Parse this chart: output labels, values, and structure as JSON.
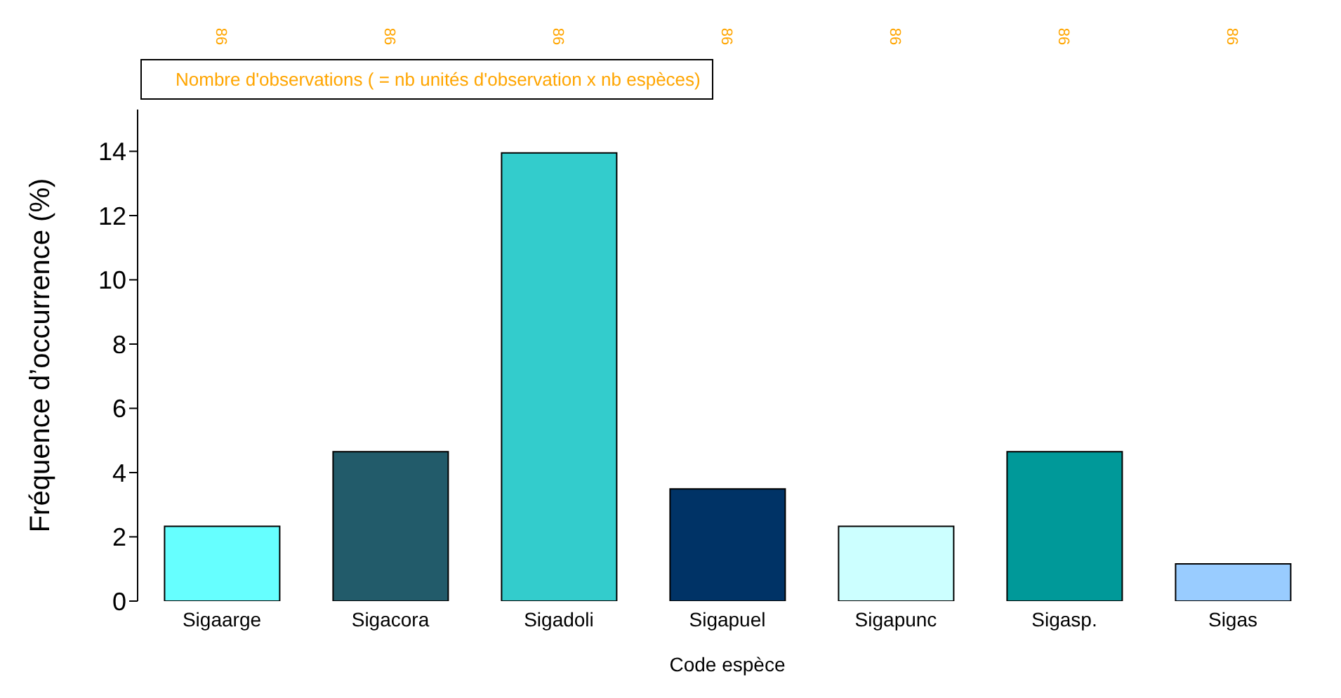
{
  "chart_data": {
    "type": "bar",
    "xlabel": "Code espèce",
    "ylabel": "Fréquence d’occurrence (%)",
    "categories": [
      "Sigaarge",
      "Sigacora",
      "Sigadoli",
      "Sigapuel",
      "Sigapunc",
      "Sigasp.",
      "Sigas"
    ],
    "values": [
      2.33,
      4.65,
      13.95,
      3.49,
      2.33,
      4.65,
      1.16
    ],
    "colors": [
      "#66ffff",
      "#225b6a",
      "#33cccc",
      "#003366",
      "#ccffff",
      "#009999",
      "#99ccff"
    ],
    "ylim": [
      0,
      15.3
    ],
    "yticks": [
      0,
      2,
      4,
      6,
      8,
      10,
      12,
      14
    ],
    "grid": false,
    "annotations": [
      "Nombre d'observations ( = nb unités d'observation x nb espèces)",
      "86",
      "86",
      "86",
      "86",
      "86",
      "86",
      "86"
    ]
  }
}
